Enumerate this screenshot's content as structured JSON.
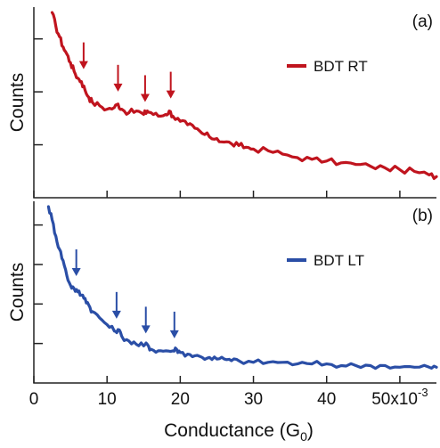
{
  "chart_data": [
    {
      "type": "line",
      "panel_label": "(a)",
      "ylabel": "Counts",
      "legend": {
        "label": "BDT RT",
        "placement": "top-right"
      },
      "color": "#c0141e",
      "xlim": [
        0,
        0.055
      ],
      "y_ticks": 3,
      "grid": false,
      "series": [
        {
          "name": "BDT RT",
          "x": [
            0.0025,
            0.003,
            0.0035,
            0.004,
            0.0045,
            0.005,
            0.0055,
            0.006,
            0.0065,
            0.007,
            0.0075,
            0.008,
            0.009,
            0.01,
            0.011,
            0.0115,
            0.012,
            0.013,
            0.014,
            0.015,
            0.0155,
            0.016,
            0.017,
            0.018,
            0.0185,
            0.019,
            0.02,
            0.021,
            0.022,
            0.023,
            0.024,
            0.025,
            0.026,
            0.027,
            0.028,
            0.029,
            0.03,
            0.032,
            0.034,
            0.036,
            0.038,
            0.04,
            0.042,
            0.044,
            0.046,
            0.048,
            0.05,
            0.052,
            0.054,
            0.055
          ],
          "y": [
            1.0,
            0.92,
            0.86,
            0.8,
            0.76,
            0.71,
            0.66,
            0.62,
            0.6,
            0.55,
            0.51,
            0.48,
            0.46,
            0.44,
            0.45,
            0.47,
            0.44,
            0.42,
            0.43,
            0.41,
            0.43,
            0.42,
            0.4,
            0.41,
            0.43,
            0.4,
            0.37,
            0.35,
            0.33,
            0.3,
            0.28,
            0.27,
            0.25,
            0.24,
            0.23,
            0.22,
            0.21,
            0.2,
            0.18,
            0.16,
            0.15,
            0.14,
            0.13,
            0.12,
            0.11,
            0.1,
            0.09,
            0.08,
            0.06,
            0.05
          ]
        }
      ],
      "annotations": [
        {
          "type": "arrow",
          "x": 0.0068
        },
        {
          "type": "arrow",
          "x": 0.0115
        },
        {
          "type": "arrow",
          "x": 0.0152
        },
        {
          "type": "arrow",
          "x": 0.0187
        }
      ]
    },
    {
      "type": "line",
      "panel_label": "(b)",
      "ylabel": "Counts",
      "xlabel": "Conductance (G0)",
      "xlabel_main": "Conductance (G",
      "xlabel_sub": "0",
      "xlabel_close": ")",
      "legend": {
        "label": "BDT LT",
        "placement": "top-right"
      },
      "color": "#2a4ea6",
      "xlim": [
        0,
        0.055
      ],
      "x_ticks": [
        0,
        0.01,
        0.02,
        0.03,
        0.04,
        0.05
      ],
      "x_tick_labels": [
        "0",
        "10",
        "20",
        "30",
        "40",
        "50x10"
      ],
      "x_exponent": "-3",
      "y_ticks": 4,
      "grid": false,
      "series": [
        {
          "name": "BDT LT",
          "x": [
            0.002,
            0.0025,
            0.003,
            0.0035,
            0.004,
            0.0045,
            0.005,
            0.0055,
            0.006,
            0.0065,
            0.007,
            0.0075,
            0.008,
            0.009,
            0.01,
            0.011,
            0.0115,
            0.012,
            0.013,
            0.014,
            0.015,
            0.0155,
            0.016,
            0.017,
            0.018,
            0.019,
            0.0195,
            0.02,
            0.021,
            0.022,
            0.023,
            0.024,
            0.025,
            0.026,
            0.027,
            0.028,
            0.03,
            0.032,
            0.034,
            0.036,
            0.038,
            0.04,
            0.042,
            0.044,
            0.046,
            0.048,
            0.05,
            0.052,
            0.054,
            0.055
          ],
          "y": [
            1.0,
            0.92,
            0.82,
            0.74,
            0.67,
            0.58,
            0.52,
            0.5,
            0.48,
            0.46,
            0.44,
            0.4,
            0.36,
            0.32,
            0.28,
            0.24,
            0.25,
            0.21,
            0.18,
            0.16,
            0.15,
            0.16,
            0.13,
            0.12,
            0.12,
            0.12,
            0.13,
            0.11,
            0.1,
            0.09,
            0.08,
            0.08,
            0.07,
            0.07,
            0.06,
            0.06,
            0.05,
            0.05,
            0.05,
            0.04,
            0.04,
            0.04,
            0.03,
            0.03,
            0.03,
            0.03,
            0.02,
            0.02,
            0.02,
            0.02
          ]
        }
      ],
      "annotations": [
        {
          "type": "arrow",
          "x": 0.0058
        },
        {
          "type": "arrow",
          "x": 0.0113
        },
        {
          "type": "arrow",
          "x": 0.0153
        },
        {
          "type": "arrow",
          "x": 0.0192
        }
      ]
    }
  ]
}
